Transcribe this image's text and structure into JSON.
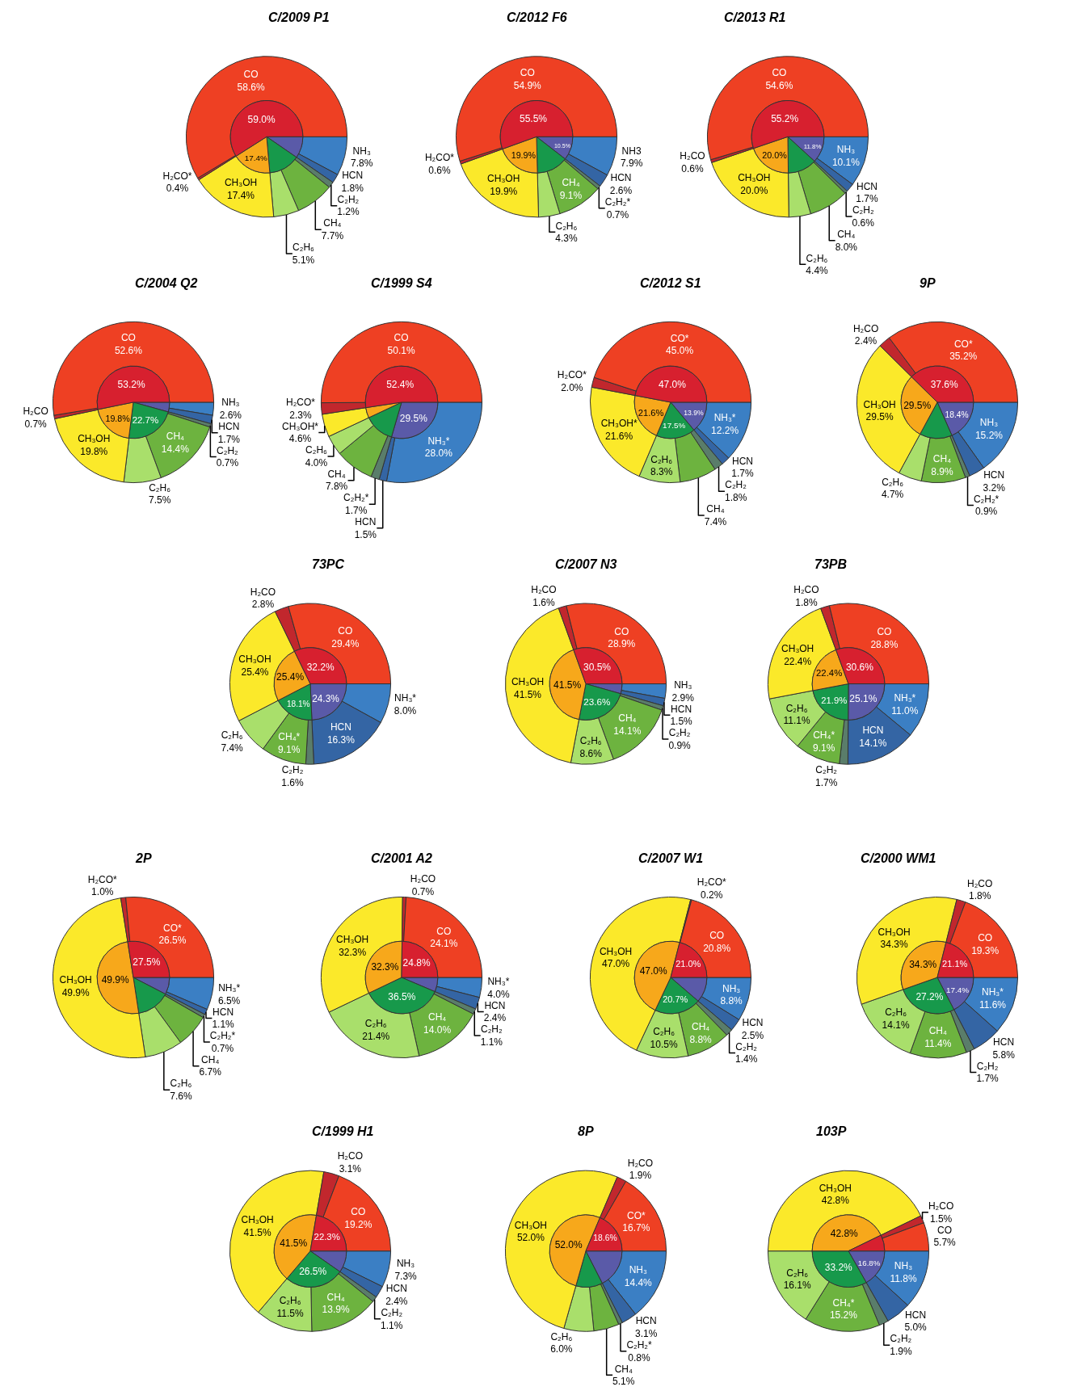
{
  "chart_data": [
    {
      "type": "donut",
      "title": "C/2009 P1",
      "categories": [
        "NH₃",
        "HCN",
        "C₂H₂",
        "CH₄",
        "C₂H₆",
        "CH₃OH",
        "H₂CO*",
        "CO"
      ],
      "series": [
        {
          "values": [
            7.8,
            1.8,
            1.2,
            7.7,
            5.1,
            17.4,
            0.4,
            58.6
          ],
          "colors": [
            "#3b7fc4",
            "#3465a4",
            "#5a7d6a",
            "#6db33f",
            "#a9df6b",
            "#fbe92a",
            "#c1272d",
            "#ee4023"
          ],
          "value_labels": [
            "7.8%",
            "1.8%",
            "1.2%",
            "7.7%",
            "5.1%",
            "17.4%",
            "0.4%",
            "58.6%"
          ]
        },
        {
          "type": "pie",
          "values": [
            9.6,
            null,
            14.0,
            null,
            null,
            17.4,
            59.0,
            null
          ],
          "colors": [
            "#5a5aa8",
            null,
            "#17994b",
            null,
            null,
            "#f7a81b",
            "#d7202f",
            null
          ],
          "value_labels": [
            null,
            null,
            null,
            null,
            null,
            "17.4%",
            "59.0%",
            null
          ]
        }
      ]
    },
    {
      "type": "donut",
      "title": "C/2012 F6",
      "categories": [
        "NH3",
        "HCN",
        "C₂H₂*",
        "CH₄",
        "C₂H₆",
        "CH₃OH",
        "H₂CO*",
        "CO"
      ],
      "series": [
        {
          "values": [
            7.9,
            2.6,
            0.7,
            9.1,
            4.3,
            19.9,
            0.6,
            54.9
          ],
          "colors": [
            "#3b7fc4",
            "#3465a4",
            "#5a7d6a",
            "#6db33f",
            "#a9df6b",
            "#fbe92a",
            "#c1272d",
            "#ee4023"
          ],
          "value_labels": [
            "7.9%",
            "2.6%",
            "0.7%",
            "9.1%",
            "4.3%",
            "19.9%",
            "0.6%",
            "54.9%"
          ]
        },
        {
          "type": "pie",
          "values": [
            10.5,
            null,
            14.1,
            null,
            null,
            19.9,
            55.5,
            null
          ],
          "colors": [
            "#5a5aa8",
            null,
            "#17994b",
            null,
            null,
            "#f7a81b",
            "#d7202f",
            null
          ],
          "value_labels": [
            "10.5%",
            null,
            null,
            null,
            null,
            "19.9%",
            "55.5%",
            null
          ]
        }
      ]
    },
    {
      "type": "donut",
      "title": "C/2013 R1",
      "categories": [
        "NH₃",
        "HCN",
        "C₂H₂",
        "CH₄",
        "C₂H₆",
        "CH₃OH",
        "H₂CO",
        "CO"
      ],
      "series": [
        {
          "values": [
            10.1,
            1.7,
            0.6,
            8.0,
            4.4,
            20.0,
            0.6,
            54.6
          ],
          "colors": [
            "#3b7fc4",
            "#3465a4",
            "#5a7d6a",
            "#6db33f",
            "#a9df6b",
            "#fbe92a",
            "#c1272d",
            "#ee4023"
          ],
          "value_labels": [
            "10.1%",
            "1.7%",
            "0.6%",
            "8.0%",
            "4.4%",
            "20.0%",
            "0.6%",
            "54.6%"
          ]
        },
        {
          "type": "pie",
          "values": [
            11.8,
            null,
            13.0,
            null,
            null,
            20.0,
            55.2,
            null
          ],
          "colors": [
            "#5a5aa8",
            null,
            "#17994b",
            null,
            null,
            "#f7a81b",
            "#d7202f",
            null
          ],
          "value_labels": [
            "11.8%",
            null,
            null,
            null,
            null,
            "20.0%",
            "55.2%",
            null
          ]
        }
      ]
    },
    {
      "type": "donut",
      "title": "C/2004 Q2",
      "categories": [
        "NH₃",
        "HCN",
        "C₂H₂",
        "CH₄",
        "C₂H₆",
        "CH₃OH",
        "H₂CO",
        "CO"
      ],
      "series": [
        {
          "values": [
            2.6,
            1.7,
            0.7,
            14.4,
            7.5,
            19.8,
            0.7,
            52.6
          ],
          "colors": [
            "#3b7fc4",
            "#3465a4",
            "#5a7d6a",
            "#6db33f",
            "#a9df6b",
            "#fbe92a",
            "#c1272d",
            "#ee4023"
          ],
          "value_labels": [
            "2.6%",
            "1.7%",
            "0.7%",
            "14.4%",
            "7.5%",
            "19.8%",
            "0.7%",
            "52.6%"
          ]
        },
        {
          "type": "pie",
          "values": [
            4.3,
            null,
            22.7,
            null,
            null,
            19.8,
            53.2,
            null
          ],
          "colors": [
            "#5a5aa8",
            null,
            "#17994b",
            null,
            null,
            "#f7a81b",
            "#d7202f",
            null
          ],
          "value_labels": [
            null,
            null,
            "22.7%",
            null,
            null,
            "19.8%",
            "53.2%",
            null
          ]
        }
      ]
    },
    {
      "type": "donut",
      "title": "C/1999 S4",
      "categories": [
        "NH₃*",
        "HCN",
        "C₂H₂*",
        "CH₄",
        "C₂H₆",
        "CH₃OH*",
        "H₂CO*",
        "CO"
      ],
      "series": [
        {
          "values": [
            28.0,
            1.5,
            1.7,
            7.8,
            4.0,
            4.6,
            2.3,
            50.1
          ],
          "colors": [
            "#3b7fc4",
            "#3465a4",
            "#5a7d6a",
            "#6db33f",
            "#a9df6b",
            "#fbe92a",
            "#c1272d",
            "#ee4023"
          ],
          "value_labels": [
            "28.0%",
            "1.5%",
            "1.7%",
            "7.8%",
            "4.0%",
            "4.6%",
            "2.3%",
            "50.1%"
          ]
        },
        {
          "type": "pie",
          "values": [
            29.5,
            null,
            13.5,
            null,
            null,
            4.6,
            52.4,
            null
          ],
          "colors": [
            "#5a5aa8",
            null,
            "#17994b",
            null,
            null,
            "#f7a81b",
            "#d7202f",
            null
          ],
          "value_labels": [
            "29.5%",
            null,
            null,
            null,
            null,
            null,
            "52.4%",
            null
          ]
        }
      ]
    },
    {
      "type": "donut",
      "title": "C/2012 S1",
      "categories": [
        "NH₃*",
        "HCN",
        "C₂H₂",
        "CH₄",
        "C₂H₆",
        "CH₃OH*",
        "H₂CO*",
        "CO*"
      ],
      "series": [
        {
          "values": [
            12.2,
            1.7,
            1.8,
            7.4,
            8.3,
            21.6,
            2.0,
            45.0
          ],
          "colors": [
            "#3b7fc4",
            "#3465a4",
            "#5a7d6a",
            "#6db33f",
            "#a9df6b",
            "#fbe92a",
            "#c1272d",
            "#ee4023"
          ],
          "value_labels": [
            "12.2%",
            "1.7%",
            "1.8%",
            "7.4%",
            "8.3%",
            "21.6%",
            "2.0%",
            "45.0%"
          ]
        },
        {
          "type": "pie",
          "values": [
            13.9,
            null,
            17.5,
            null,
            null,
            21.6,
            47.0,
            null
          ],
          "colors": [
            "#5a5aa8",
            null,
            "#17994b",
            null,
            null,
            "#f7a81b",
            "#d7202f",
            null
          ],
          "value_labels": [
            "13.9%",
            null,
            "17.5%",
            null,
            null,
            "21.6%",
            "47.0%",
            null
          ]
        }
      ]
    },
    {
      "type": "donut",
      "title": "9P",
      "categories": [
        "NH₃",
        "HCN",
        "C₂H₂*",
        "CH₄",
        "C₂H₆",
        "CH₃OH",
        "H₂CO",
        "CO*"
      ],
      "series": [
        {
          "values": [
            15.2,
            3.2,
            0.9,
            8.9,
            4.7,
            29.5,
            2.4,
            35.2
          ],
          "colors": [
            "#3b7fc4",
            "#3465a4",
            "#5a7d6a",
            "#6db33f",
            "#a9df6b",
            "#fbe92a",
            "#c1272d",
            "#ee4023"
          ],
          "value_labels": [
            "15.2%",
            "3.2%",
            "0.9%",
            "8.9%",
            "4.7%",
            "29.5%",
            "2.4%",
            "35.2%"
          ]
        },
        {
          "type": "pie",
          "values": [
            18.4,
            null,
            14.5,
            null,
            null,
            29.5,
            37.6,
            null
          ],
          "colors": [
            "#5a5aa8",
            null,
            "#17994b",
            null,
            null,
            "#f7a81b",
            "#d7202f",
            null
          ],
          "value_labels": [
            "18.4%",
            null,
            null,
            null,
            null,
            "29.5%",
            "37.6%",
            null
          ]
        }
      ]
    },
    {
      "type": "donut",
      "title": "73PC",
      "categories": [
        "NH₃*",
        "HCN",
        "C₂H₂",
        "CH₄*",
        "C₂H₆",
        "CH₃OH",
        "H₂CO",
        "CO"
      ],
      "series": [
        {
          "values": [
            8.0,
            16.3,
            1.6,
            9.1,
            7.4,
            25.4,
            2.8,
            29.4
          ],
          "colors": [
            "#3b7fc4",
            "#3465a4",
            "#5a7d6a",
            "#6db33f",
            "#a9df6b",
            "#fbe92a",
            "#c1272d",
            "#ee4023"
          ],
          "value_labels": [
            "8.0%",
            "16.3%",
            "1.6%",
            "9.1%",
            "7.4%",
            "25.4%",
            "2.8%",
            "29.4%"
          ]
        },
        {
          "type": "pie",
          "values": [
            24.3,
            null,
            18.1,
            null,
            null,
            25.4,
            32.2,
            null
          ],
          "colors": [
            "#5a5aa8",
            null,
            "#17994b",
            null,
            null,
            "#f7a81b",
            "#d7202f",
            null
          ],
          "value_labels": [
            "24.3%",
            null,
            "18.1%",
            null,
            null,
            "25.4%",
            "32.2%",
            null
          ]
        }
      ]
    },
    {
      "type": "donut",
      "title": "C/2007 N3",
      "categories": [
        "NH₃",
        "HCN",
        "C₂H₂",
        "CH₄",
        "C₂H₆",
        "CH₃OH",
        "H₂CO",
        "CO"
      ],
      "series": [
        {
          "values": [
            2.9,
            1.5,
            0.9,
            14.1,
            8.6,
            41.5,
            1.6,
            28.9
          ],
          "colors": [
            "#3b7fc4",
            "#3465a4",
            "#5a7d6a",
            "#6db33f",
            "#a9df6b",
            "#fbe92a",
            "#c1272d",
            "#ee4023"
          ],
          "value_labels": [
            "2.9%",
            "1.5%",
            "0.9%",
            "14.1%",
            "8.6%",
            "41.5%",
            "1.6%",
            "28.9%"
          ]
        },
        {
          "type": "pie",
          "values": [
            4.4,
            null,
            23.6,
            null,
            null,
            41.5,
            30.5,
            null
          ],
          "colors": [
            "#5a5aa8",
            null,
            "#17994b",
            null,
            null,
            "#f7a81b",
            "#d7202f",
            null
          ],
          "value_labels": [
            null,
            null,
            "23.6%",
            null,
            null,
            "41.5%",
            "30.5%",
            null
          ]
        }
      ]
    },
    {
      "type": "donut",
      "title": "73PB",
      "categories": [
        "NH₃*",
        "HCN",
        "C₂H₂",
        "CH₄*",
        "C₂H₆",
        "CH₃OH",
        "H₂CO",
        "CO"
      ],
      "series": [
        {
          "values": [
            11.0,
            14.1,
            1.7,
            9.1,
            11.1,
            22.4,
            1.8,
            28.8
          ],
          "colors": [
            "#3b7fc4",
            "#3465a4",
            "#5a7d6a",
            "#6db33f",
            "#a9df6b",
            "#fbe92a",
            "#c1272d",
            "#ee4023"
          ],
          "value_labels": [
            "11.0%",
            "14.1%",
            "1.7%",
            "9.1%",
            "11.1%",
            "22.4%",
            "1.8%",
            "28.8%"
          ]
        },
        {
          "type": "pie",
          "values": [
            25.1,
            null,
            21.9,
            null,
            null,
            22.4,
            30.6,
            null
          ],
          "colors": [
            "#5a5aa8",
            null,
            "#17994b",
            null,
            null,
            "#f7a81b",
            "#d7202f",
            null
          ],
          "value_labels": [
            "25.1%",
            null,
            "21.9%",
            null,
            null,
            "22.4%",
            "30.6%",
            null
          ]
        }
      ]
    },
    {
      "type": "donut",
      "title": "2P",
      "categories": [
        "NH₃*",
        "HCN",
        "C₂H₂*",
        "CH₄",
        "C₂H₆",
        "CH₃OH",
        "H₂CO*",
        "CO*"
      ],
      "series": [
        {
          "values": [
            6.5,
            1.1,
            0.7,
            6.7,
            7.6,
            49.9,
            1.0,
            26.5
          ],
          "colors": [
            "#3b7fc4",
            "#3465a4",
            "#5a7d6a",
            "#6db33f",
            "#a9df6b",
            "#fbe92a",
            "#c1272d",
            "#ee4023"
          ],
          "value_labels": [
            "6.5%",
            "1.1%",
            "0.7%",
            "6.7%",
            "7.6%",
            "49.9%",
            "1.0%",
            "26.5%"
          ]
        },
        {
          "type": "pie",
          "values": [
            7.6,
            null,
            15.0,
            null,
            null,
            49.9,
            27.5,
            null
          ],
          "colors": [
            "#5a5aa8",
            null,
            "#17994b",
            null,
            null,
            "#f7a81b",
            "#d7202f",
            null
          ],
          "value_labels": [
            null,
            null,
            null,
            null,
            null,
            "49.9%",
            "27.5%",
            null
          ]
        }
      ]
    },
    {
      "type": "donut",
      "title": "C/2001 A2",
      "categories": [
        "NH₃*",
        "HCN",
        "C₂H₂",
        "CH₄",
        "C₂H₆",
        "CH₃OH",
        "H₂CO",
        "CO"
      ],
      "series": [
        {
          "values": [
            4.0,
            2.4,
            1.1,
            14.0,
            21.4,
            32.3,
            0.7,
            24.1
          ],
          "colors": [
            "#3b7fc4",
            "#3465a4",
            "#5a7d6a",
            "#6db33f",
            "#a9df6b",
            "#fbe92a",
            "#c1272d",
            "#ee4023"
          ],
          "value_labels": [
            "4.0%",
            "2.4%",
            "1.1%",
            "14.0%",
            "21.4%",
            "32.3%",
            "0.7%",
            "24.1%"
          ]
        },
        {
          "type": "pie",
          "values": [
            6.4,
            null,
            36.5,
            null,
            null,
            32.3,
            24.8,
            null
          ],
          "colors": [
            "#5a5aa8",
            null,
            "#17994b",
            null,
            null,
            "#f7a81b",
            "#d7202f",
            null
          ],
          "value_labels": [
            null,
            null,
            "36.5%",
            null,
            null,
            "32.3%",
            "24.8%",
            null
          ]
        }
      ]
    },
    {
      "type": "donut",
      "title": "C/2007 W1",
      "categories": [
        "NH₃",
        "HCN",
        "C₂H₂",
        "CH₄",
        "C₂H₆",
        "CH₃OH",
        "H₂CO*",
        "CO"
      ],
      "series": [
        {
          "values": [
            8.8,
            2.5,
            1.4,
            8.8,
            10.5,
            47.0,
            0.2,
            20.8
          ],
          "colors": [
            "#3b7fc4",
            "#3465a4",
            "#5a7d6a",
            "#6db33f",
            "#a9df6b",
            "#fbe92a",
            "#c1272d",
            "#ee4023"
          ],
          "value_labels": [
            "8.8%",
            "2.5%",
            "1.4%",
            "8.8%",
            "10.5%",
            "47.0%",
            "0.2%",
            "20.8%"
          ]
        },
        {
          "type": "pie",
          "values": [
            11.3,
            null,
            20.7,
            null,
            null,
            47.0,
            21.0,
            null
          ],
          "colors": [
            "#5a5aa8",
            null,
            "#17994b",
            null,
            null,
            "#f7a81b",
            "#d7202f",
            null
          ],
          "value_labels": [
            null,
            null,
            "20.7%",
            null,
            null,
            "47.0%",
            "21.0%",
            null
          ]
        }
      ]
    },
    {
      "type": "donut",
      "title": "C/2000 WM1",
      "categories": [
        "NH₃*",
        "HCN",
        "C₂H₂",
        "CH₄",
        "C₂H₆",
        "CH₃OH",
        "H₂CO",
        "CO"
      ],
      "series": [
        {
          "values": [
            11.6,
            5.8,
            1.7,
            11.4,
            14.1,
            34.3,
            1.8,
            19.3
          ],
          "colors": [
            "#3b7fc4",
            "#3465a4",
            "#5a7d6a",
            "#6db33f",
            "#a9df6b",
            "#fbe92a",
            "#c1272d",
            "#ee4023"
          ],
          "value_labels": [
            "11.6%",
            "5.8%",
            "1.7%",
            "11.4%",
            "14.1%",
            "34.3%",
            "1.8%",
            "19.3%"
          ]
        },
        {
          "type": "pie",
          "values": [
            17.4,
            null,
            27.2,
            null,
            null,
            34.3,
            21.1,
            null
          ],
          "colors": [
            "#5a5aa8",
            null,
            "#17994b",
            null,
            null,
            "#f7a81b",
            "#d7202f",
            null
          ],
          "value_labels": [
            "17.4%",
            null,
            "27.2%",
            null,
            null,
            "34.3%",
            "21.1%",
            null
          ]
        }
      ]
    },
    {
      "type": "donut",
      "title": "C/1999 H1",
      "categories": [
        "NH₃",
        "HCN",
        "C₂H₂",
        "CH₄",
        "C₂H₆",
        "CH₃OH",
        "H₂CO",
        "CO"
      ],
      "series": [
        {
          "values": [
            7.3,
            2.4,
            1.1,
            13.9,
            11.5,
            41.5,
            3.1,
            19.2
          ],
          "colors": [
            "#3b7fc4",
            "#3465a4",
            "#5a7d6a",
            "#6db33f",
            "#a9df6b",
            "#fbe92a",
            "#c1272d",
            "#ee4023"
          ],
          "value_labels": [
            "7.3%",
            "2.4%",
            "1.1%",
            "13.9%",
            "11.5%",
            "41.5%",
            "3.1%",
            "19.2%"
          ]
        },
        {
          "type": "pie",
          "values": [
            9.7,
            null,
            26.5,
            null,
            null,
            41.5,
            22.3,
            null
          ],
          "colors": [
            "#5a5aa8",
            null,
            "#17994b",
            null,
            null,
            "#f7a81b",
            "#d7202f",
            null
          ],
          "value_labels": [
            null,
            null,
            "26.5%",
            null,
            null,
            "41.5%",
            "22.3%",
            null
          ]
        }
      ]
    },
    {
      "type": "donut",
      "title": "8P",
      "categories": [
        "NH₃",
        "HCN",
        "C₂H₂*",
        "CH₄",
        "C₂H₆",
        "CH₃OH",
        "H₂CO",
        "CO*"
      ],
      "series": [
        {
          "values": [
            14.4,
            3.1,
            0.8,
            5.1,
            6.0,
            52.0,
            1.9,
            16.7
          ],
          "colors": [
            "#3b7fc4",
            "#3465a4",
            "#5a7d6a",
            "#6db33f",
            "#a9df6b",
            "#fbe92a",
            "#c1272d",
            "#ee4023"
          ],
          "value_labels": [
            "14.4%",
            "3.1%",
            "0.8%",
            "5.1%",
            "6.0%",
            "52.0%",
            "1.9%",
            "16.7%"
          ]
        },
        {
          "type": "pie",
          "values": [
            17.5,
            null,
            11.9,
            null,
            null,
            52.0,
            18.6,
            null
          ],
          "colors": [
            "#5a5aa8",
            null,
            "#17994b",
            null,
            null,
            "#f7a81b",
            "#d7202f",
            null
          ],
          "value_labels": [
            null,
            null,
            null,
            null,
            null,
            "52.0%",
            "18.6%",
            null
          ]
        }
      ]
    },
    {
      "type": "donut",
      "title": "103P",
      "categories": [
        "NH₃",
        "HCN",
        "C₂H₂",
        "CH₄*",
        "C₂H₆",
        "CH₃OH",
        "H₂CO",
        "CO"
      ],
      "series": [
        {
          "values": [
            11.8,
            5.0,
            1.9,
            15.2,
            16.1,
            42.8,
            1.5,
            5.7
          ],
          "colors": [
            "#3b7fc4",
            "#3465a4",
            "#5a7d6a",
            "#6db33f",
            "#a9df6b",
            "#fbe92a",
            "#c1272d",
            "#ee4023"
          ],
          "value_labels": [
            "11.8%",
            "5.0%",
            "1.9%",
            "15.2%",
            "16.1%",
            "42.8%",
            "1.5%",
            "5.7%"
          ]
        },
        {
          "type": "pie",
          "values": [
            16.8,
            null,
            33.2,
            null,
            null,
            42.8,
            7.2,
            null
          ],
          "colors": [
            "#5a5aa8",
            null,
            "#17994b",
            null,
            null,
            "#f7a81b",
            "#d7202f",
            null
          ],
          "value_labels": [
            "16.8%",
            null,
            "33.2%",
            null,
            null,
            "42.8%",
            null,
            null
          ]
        }
      ]
    }
  ]
}
